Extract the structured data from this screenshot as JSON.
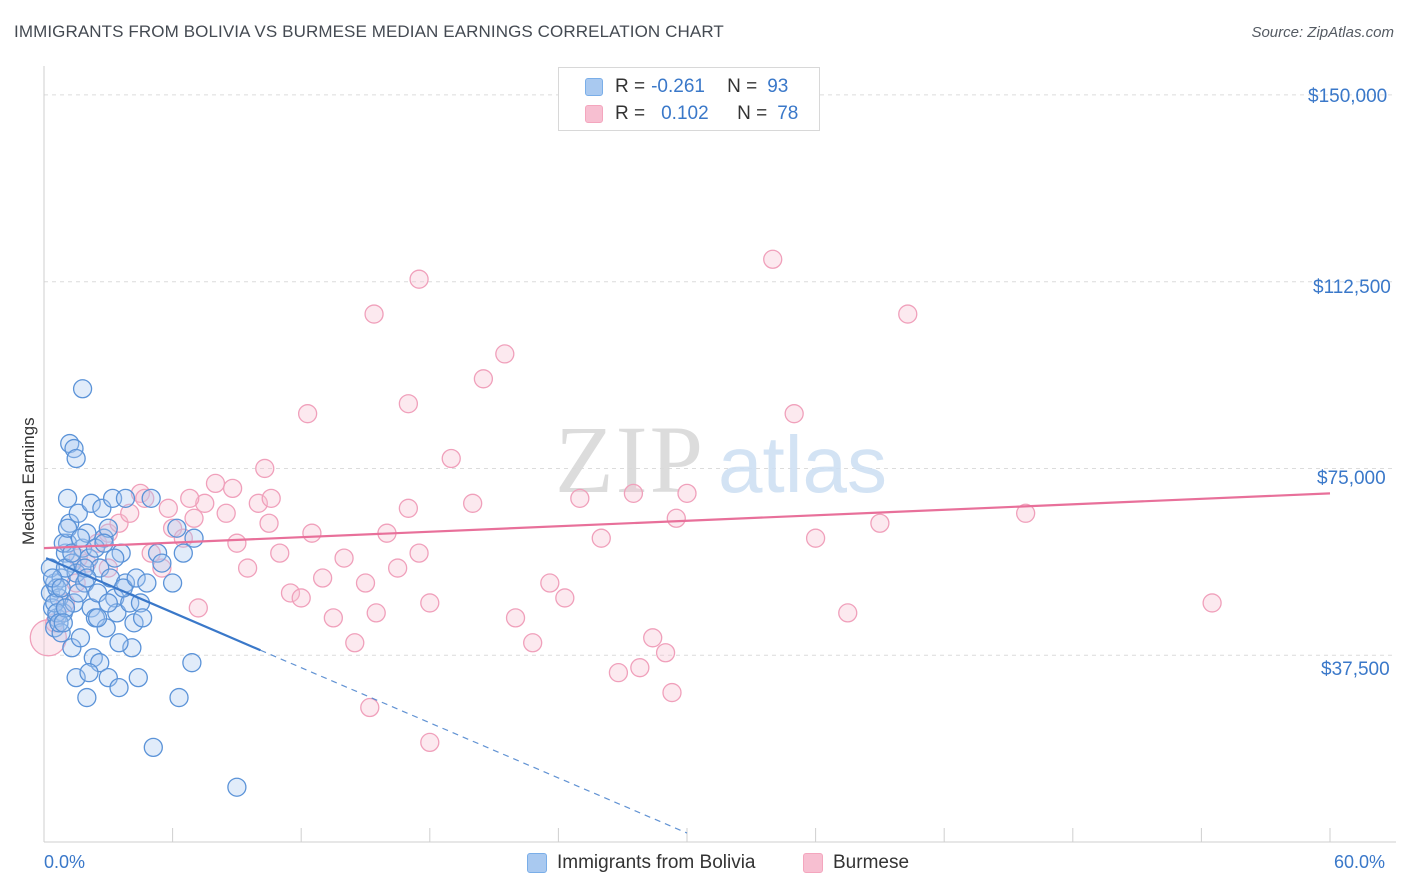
{
  "header": {
    "title": "IMMIGRANTS FROM BOLIVIA VS BURMESE MEDIAN EARNINGS CORRELATION CHART",
    "source": "Source: ZipAtlas.com"
  },
  "watermark": {
    "zip": "ZIP",
    "atlas": "atlas"
  },
  "legend": {
    "rows": [
      {
        "r_label": "R =",
        "r_value": "-0.261",
        "n_label": "N =",
        "n_value": "93",
        "color": "#7aaee8"
      },
      {
        "r_label": "R =",
        "r_value": "0.102",
        "n_label": "N =",
        "n_value": "78",
        "color": "#f4a6be"
      }
    ]
  },
  "axes": {
    "y_title": "Median Earnings",
    "x_min_label": "0.0%",
    "x_max_label": "60.0%",
    "y_tick_labels": [
      "$150,000",
      "$112,500",
      "$75,000",
      "$37,500"
    ]
  },
  "bottom_legend": {
    "series1": "Immigrants from Bolivia",
    "series2": "Burmese"
  },
  "chart_data": {
    "type": "scatter",
    "title": "IMMIGRANTS FROM BOLIVIA VS BURMESE MEDIAN EARNINGS CORRELATION CHART",
    "xlabel": "",
    "ylabel": "Median Earnings",
    "xlim": [
      0,
      60
    ],
    "ylim": [
      0,
      154000
    ],
    "y_ticks": [
      37500,
      75000,
      112500,
      150000
    ],
    "x_minor_ticks": [
      6,
      12,
      18,
      24,
      30,
      36,
      42,
      48,
      54,
      60
    ],
    "colors": {
      "bolivia": "#3a78c9",
      "bolivia_fill": "#a9c9f0",
      "burmese": "#e8709a",
      "burmese_fill": "#f7bfd1"
    },
    "series": [
      {
        "name": "Immigrants from Bolivia",
        "r": -0.261,
        "n": 93,
        "trend": {
          "x0": 0.1,
          "y0": 57000,
          "x1": 10.1,
          "y1": 38500,
          "dash_to_x": 30,
          "dash_to_y": 1800
        },
        "points": [
          [
            0.3,
            50000
          ],
          [
            0.4,
            47000
          ],
          [
            0.5,
            52000
          ],
          [
            0.6,
            45000
          ],
          [
            0.3,
            55000
          ],
          [
            0.7,
            49000
          ],
          [
            0.8,
            53000
          ],
          [
            0.5,
            43000
          ],
          [
            0.9,
            46000
          ],
          [
            1.0,
            58000
          ],
          [
            1.1,
            60000
          ],
          [
            1.2,
            64000
          ],
          [
            1.3,
            56000
          ],
          [
            0.6,
            51000
          ],
          [
            1.4,
            48000
          ],
          [
            1.5,
            54000
          ],
          [
            1.6,
            66000
          ],
          [
            1.1,
            69000
          ],
          [
            1.8,
            59000
          ],
          [
            2.0,
            62000
          ],
          [
            2.1,
            57000
          ],
          [
            1.9,
            52000
          ],
          [
            2.2,
            47000
          ],
          [
            2.4,
            45000
          ],
          [
            2.5,
            50000
          ],
          [
            2.6,
            55000
          ],
          [
            2.8,
            61000
          ],
          [
            3.0,
            63000
          ],
          [
            3.1,
            53000
          ],
          [
            3.3,
            49000
          ],
          [
            3.4,
            46000
          ],
          [
            3.6,
            58000
          ],
          [
            3.8,
            52000
          ],
          [
            4.0,
            48000
          ],
          [
            4.2,
            44000
          ],
          [
            1.2,
            80000
          ],
          [
            1.4,
            79000
          ],
          [
            1.5,
            77000
          ],
          [
            1.8,
            91000
          ],
          [
            2.2,
            68000
          ],
          [
            2.7,
            67000
          ],
          [
            3.2,
            69000
          ],
          [
            3.8,
            69000
          ],
          [
            5.0,
            69000
          ],
          [
            5.3,
            58000
          ],
          [
            6.2,
            63000
          ],
          [
            6.0,
            52000
          ],
          [
            4.1,
            39000
          ],
          [
            4.5,
            48000
          ],
          [
            2.0,
            29000
          ],
          [
            2.3,
            37000
          ],
          [
            2.6,
            36000
          ],
          [
            3.0,
            33000
          ],
          [
            3.5,
            31000
          ],
          [
            4.4,
            33000
          ],
          [
            6.3,
            29000
          ],
          [
            6.9,
            36000
          ],
          [
            5.1,
            19000
          ],
          [
            9.0,
            11000
          ],
          [
            1.3,
            39000
          ],
          [
            1.5,
            33000
          ],
          [
            2.1,
            34000
          ],
          [
            0.8,
            42000
          ],
          [
            1.7,
            41000
          ],
          [
            2.9,
            43000
          ],
          [
            3.5,
            40000
          ],
          [
            4.6,
            45000
          ],
          [
            0.9,
            60000
          ],
          [
            1.0,
            55000
          ],
          [
            1.3,
            58000
          ],
          [
            0.4,
            53000
          ],
          [
            0.5,
            48000
          ],
          [
            0.6,
            46000
          ],
          [
            0.7,
            44000
          ],
          [
            0.8,
            51000
          ],
          [
            1.6,
            50000
          ],
          [
            1.9,
            55000
          ],
          [
            2.4,
            59000
          ],
          [
            2.5,
            45000
          ],
          [
            3.0,
            48000
          ],
          [
            3.7,
            51000
          ],
          [
            4.3,
            53000
          ],
          [
            4.8,
            52000
          ],
          [
            5.5,
            56000
          ],
          [
            6.5,
            58000
          ],
          [
            7.0,
            61000
          ],
          [
            1.1,
            63000
          ],
          [
            1.0,
            47000
          ],
          [
            0.9,
            44000
          ],
          [
            2.0,
            53000
          ],
          [
            2.8,
            60000
          ],
          [
            3.3,
            57000
          ],
          [
            1.7,
            61000
          ]
        ]
      },
      {
        "name": "Burmese",
        "r": 0.102,
        "n": 78,
        "trend": {
          "x0": 0,
          "y0": 59000,
          "x1": 60,
          "y1": 70000
        },
        "points": [
          [
            0.2,
            41000
          ],
          [
            0.5,
            44000
          ],
          [
            1.0,
            48000
          ],
          [
            1.5,
            52000
          ],
          [
            2.0,
            56000
          ],
          [
            2.5,
            60000
          ],
          [
            3.0,
            62000
          ],
          [
            3.5,
            64000
          ],
          [
            4.0,
            66000
          ],
          [
            4.5,
            70000
          ],
          [
            5.0,
            58000
          ],
          [
            5.5,
            55000
          ],
          [
            6.0,
            63000
          ],
          [
            6.5,
            61000
          ],
          [
            7.0,
            65000
          ],
          [
            7.5,
            68000
          ],
          [
            8.0,
            72000
          ],
          [
            8.5,
            66000
          ],
          [
            9.0,
            60000
          ],
          [
            9.5,
            55000
          ],
          [
            10.0,
            68000
          ],
          [
            10.5,
            64000
          ],
          [
            11.0,
            58000
          ],
          [
            11.5,
            50000
          ],
          [
            12.0,
            49000
          ],
          [
            12.5,
            62000
          ],
          [
            13.0,
            53000
          ],
          [
            13.5,
            45000
          ],
          [
            14.0,
            57000
          ],
          [
            14.5,
            40000
          ],
          [
            15.0,
            52000
          ],
          [
            15.5,
            46000
          ],
          [
            16.0,
            62000
          ],
          [
            16.5,
            55000
          ],
          [
            17.0,
            67000
          ],
          [
            17.5,
            58000
          ],
          [
            18.0,
            48000
          ],
          [
            7.2,
            47000
          ],
          [
            5.8,
            67000
          ],
          [
            6.8,
            69000
          ],
          [
            8.8,
            71000
          ],
          [
            10.3,
            75000
          ],
          [
            12.3,
            86000
          ],
          [
            15.4,
            106000
          ],
          [
            17.0,
            88000
          ],
          [
            17.5,
            113000
          ],
          [
            19.0,
            77000
          ],
          [
            20.0,
            68000
          ],
          [
            21.5,
            98000
          ],
          [
            20.5,
            93000
          ],
          [
            22.0,
            45000
          ],
          [
            22.8,
            40000
          ],
          [
            23.6,
            52000
          ],
          [
            24.3,
            49000
          ],
          [
            25.0,
            69000
          ],
          [
            26.0,
            61000
          ],
          [
            27.5,
            70000
          ],
          [
            29.5,
            65000
          ],
          [
            26.8,
            34000
          ],
          [
            27.8,
            35000
          ],
          [
            28.4,
            41000
          ],
          [
            29.0,
            38000
          ],
          [
            29.3,
            30000
          ],
          [
            30.0,
            70000
          ],
          [
            34.0,
            117000
          ],
          [
            35.0,
            86000
          ],
          [
            36.0,
            61000
          ],
          [
            37.5,
            46000
          ],
          [
            39.0,
            64000
          ],
          [
            40.3,
            106000
          ],
          [
            45.8,
            66000
          ],
          [
            54.5,
            48000
          ],
          [
            15.2,
            27000
          ],
          [
            18.0,
            20000
          ],
          [
            10.6,
            69000
          ],
          [
            4.7,
            69000
          ],
          [
            3.0,
            55000
          ],
          [
            1.6,
            57000
          ]
        ]
      }
    ]
  }
}
